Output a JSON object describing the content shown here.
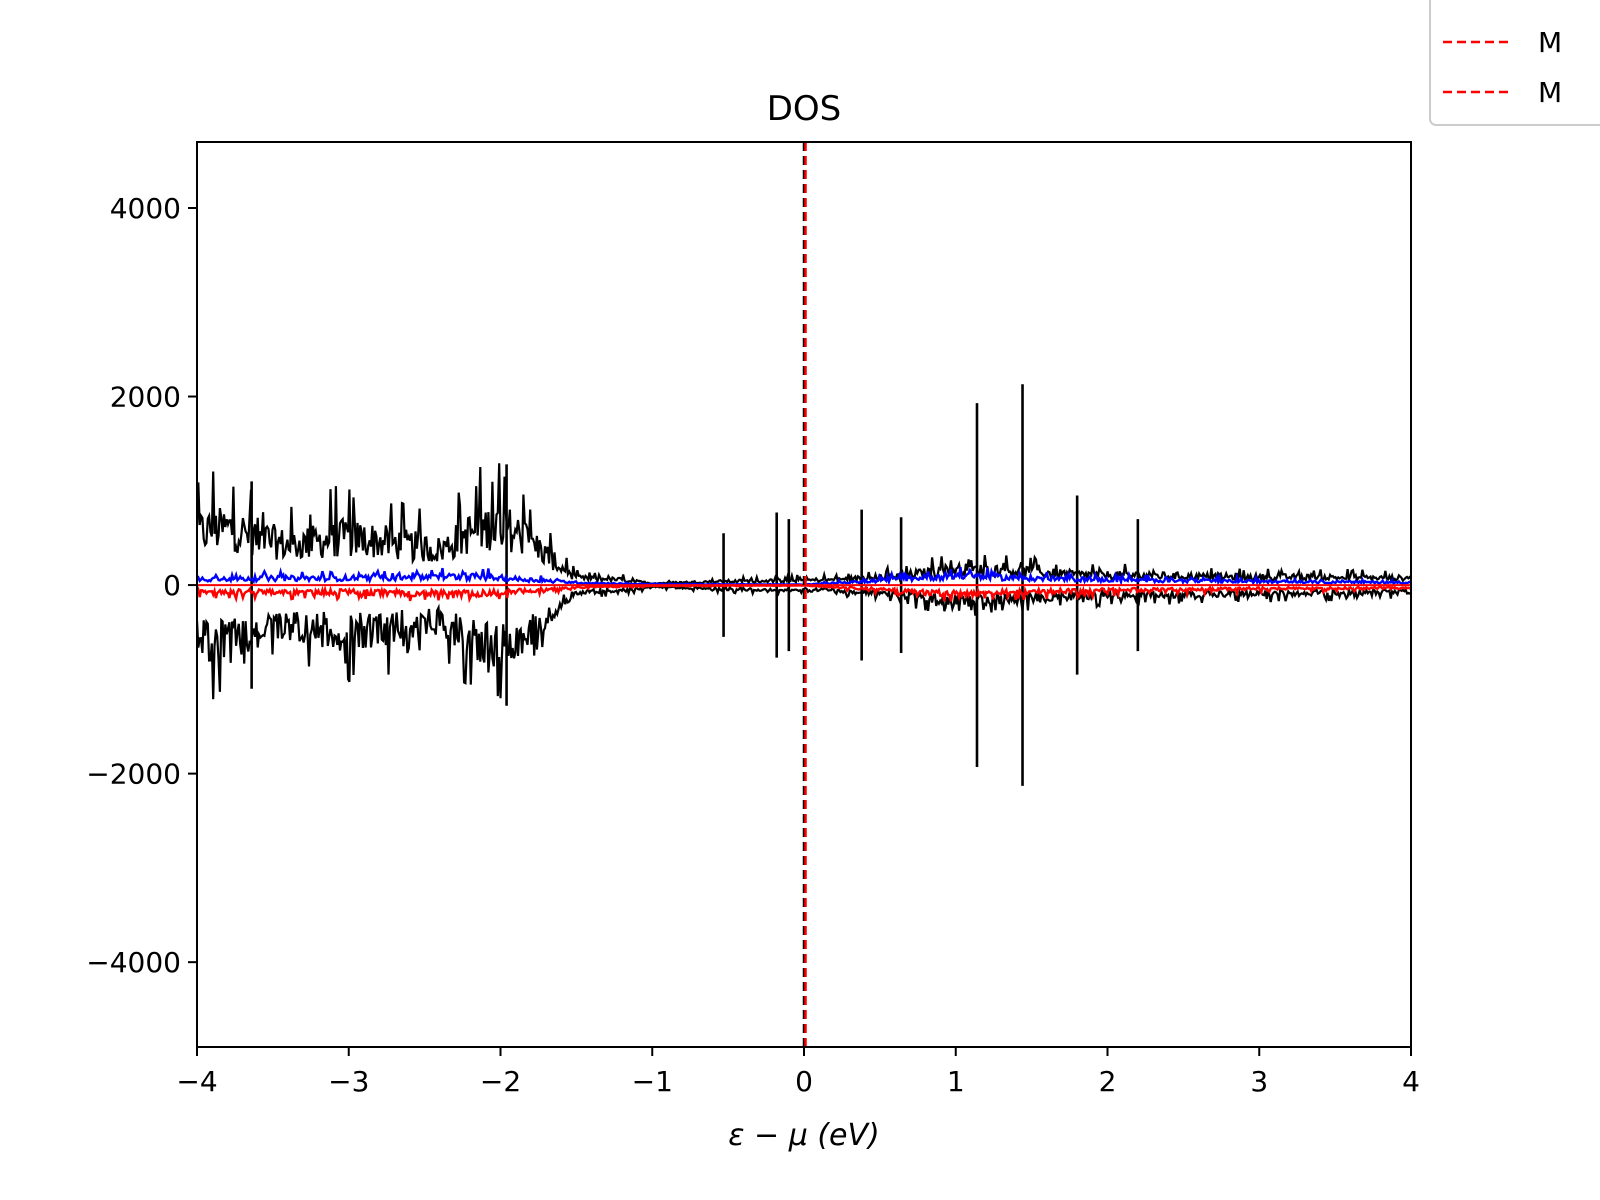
{
  "chart_data": {
    "type": "line",
    "title": "DOS",
    "xlabel": "ε − μ (eV)",
    "ylabel": "",
    "xlim": [
      -4,
      4
    ],
    "ylim": [
      -4900,
      4700
    ],
    "xticks": [
      -4,
      -3,
      -2,
      -1,
      0,
      1,
      2,
      3,
      4
    ],
    "xtick_labels": [
      "−4",
      "−3",
      "−2",
      "−1",
      "0",
      "1",
      "2",
      "3",
      "4"
    ],
    "yticks": [
      4000,
      2000,
      0,
      -2000,
      -4000
    ],
    "ytick_labels": [
      "4000",
      "2000",
      "0",
      "−2000",
      "−4000"
    ],
    "grid": false,
    "legend": {
      "placement": "top-right, clipped at image edge",
      "entries": [
        {
          "label": "M",
          "color": "#ff0000",
          "style": "dashed"
        },
        {
          "label": "M",
          "color": "#ff0000",
          "style": "dashed"
        }
      ]
    },
    "vlines": [
      {
        "x": 0.0,
        "color": "#000000",
        "style": "dashed"
      },
      {
        "x": 0.01,
        "color": "#ff0000",
        "style": "dashed"
      }
    ],
    "series": [
      {
        "color": "#000000",
        "mirrored": true,
        "envelope_x": [
          -4.0,
          -3.8,
          -3.6,
          -3.4,
          -3.2,
          -3.0,
          -2.8,
          -2.6,
          -2.4,
          -2.2,
          -2.0,
          -1.8,
          -1.6,
          -1.5,
          -1.2,
          -1.0,
          -0.6,
          -0.2,
          0.2,
          0.6,
          1.0,
          1.4,
          1.8,
          2.2,
          2.6,
          3.0,
          3.4,
          3.8,
          4.0
        ],
        "envelope_y": [
          600,
          650,
          550,
          450,
          500,
          550,
          500,
          450,
          400,
          600,
          700,
          500,
          200,
          80,
          60,
          20,
          40,
          50,
          60,
          100,
          180,
          160,
          120,
          110,
          100,
          90,
          90,
          80,
          80
        ],
        "spikes": [
          {
            "x": -3.64,
            "y": 1100
          },
          {
            "x": -1.96,
            "y": 1280
          },
          {
            "x": -0.53,
            "y": 550
          },
          {
            "x": -0.18,
            "y": 770
          },
          {
            "x": -0.1,
            "y": 700
          },
          {
            "x": 0.38,
            "y": 800
          },
          {
            "x": 0.64,
            "y": 720
          },
          {
            "x": 1.14,
            "y": 1930
          },
          {
            "x": 1.44,
            "y": 2130
          },
          {
            "x": 1.8,
            "y": 950
          },
          {
            "x": 2.2,
            "y": 700
          }
        ]
      },
      {
        "color": "#0000ff",
        "side": "positive",
        "envelope_x": [
          -4.0,
          -3.0,
          -2.2,
          -1.8,
          -1.6,
          -1.4,
          -1.0,
          0.0,
          0.4,
          1.0,
          1.4,
          2.0,
          3.0,
          4.0
        ],
        "envelope_y": [
          70,
          80,
          100,
          60,
          40,
          20,
          10,
          5,
          40,
          110,
          80,
          60,
          40,
          30
        ]
      },
      {
        "color": "#ff0000",
        "side": "negative",
        "envelope_x": [
          -4.0,
          -3.0,
          -2.2,
          -1.8,
          -1.6,
          -1.4,
          -1.0,
          0.0,
          0.4,
          1.0,
          1.4,
          2.0,
          3.0,
          4.0
        ],
        "envelope_y": [
          -70,
          -80,
          -100,
          -60,
          -40,
          -20,
          -10,
          -5,
          -40,
          -110,
          -80,
          -60,
          -40,
          -30
        ]
      }
    ]
  }
}
